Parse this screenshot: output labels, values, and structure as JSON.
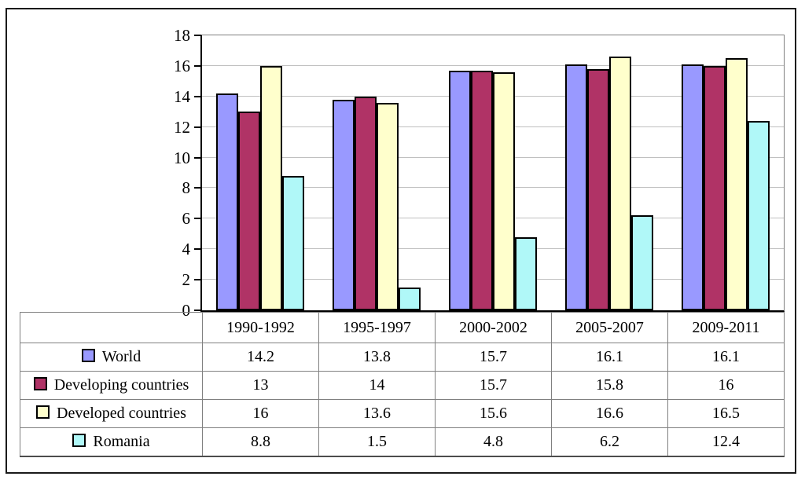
{
  "chart_data": {
    "type": "bar",
    "title": "",
    "xlabel": "",
    "ylabel": "",
    "categories": [
      "1990-1992",
      "1995-1997",
      "2000-2002",
      "2005-2007",
      "2009-2011"
    ],
    "series": [
      {
        "name": "World",
        "color": "#9999FF",
        "values": [
          14.2,
          13.8,
          15.7,
          16.1,
          16.1
        ]
      },
      {
        "name": "Developing countries",
        "color": "#B03366",
        "values": [
          13,
          14,
          15.7,
          15.8,
          16
        ]
      },
      {
        "name": "Developed countries",
        "color": "#FFFFCC",
        "values": [
          16,
          13.6,
          15.6,
          16.6,
          16.5
        ]
      },
      {
        "name": "Romania",
        "color": "#B0F8F8",
        "values": [
          8.8,
          1.5,
          4.8,
          6.2,
          12.4
        ]
      }
    ],
    "ylim": [
      0,
      18
    ],
    "ytick_step": 2,
    "grid": true,
    "legend_position": "data-table-left"
  },
  "style_colors": {
    "gridline": "#C0C0C0",
    "plot_border": "#808080",
    "axis": "#000000",
    "bar_border": "#000000",
    "table_border": "#808080",
    "frame_border": "#1A1A1A",
    "background": "#FFFFFF"
  }
}
